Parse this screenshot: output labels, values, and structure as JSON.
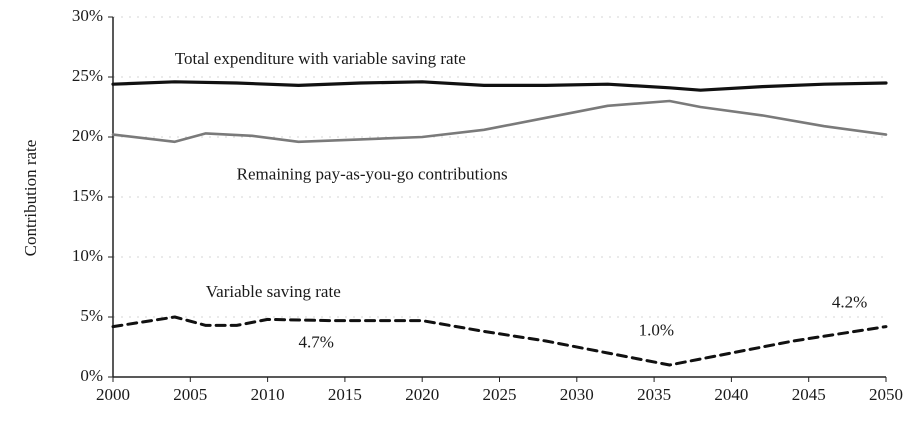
{
  "chart_data": {
    "type": "line",
    "title": "",
    "xlabel": "",
    "ylabel": "Contribution rate",
    "xlim": [
      2000,
      2050
    ],
    "ylim": [
      0,
      30
    ],
    "xticks": [
      "2000",
      "2005",
      "2010",
      "2015",
      "2020",
      "2025",
      "2030",
      "2035",
      "2040",
      "2045",
      "2050"
    ],
    "yticks": [
      "0%",
      "5%",
      "10%",
      "15%",
      "20%",
      "25%",
      "30%"
    ],
    "grid": true,
    "legend": "none",
    "series": [
      {
        "name": "Total expenditure with variable saving rate",
        "color": "#111111",
        "style": "solid-thick",
        "x": [
          2000,
          2004,
          2008,
          2012,
          2016,
          2020,
          2024,
          2028,
          2032,
          2036,
          2038,
          2042,
          2046,
          2050
        ],
        "y": [
          24.4,
          24.6,
          24.5,
          24.3,
          24.5,
          24.6,
          24.3,
          24.3,
          24.4,
          24.1,
          23.9,
          24.2,
          24.4,
          24.5
        ]
      },
      {
        "name": "Remaining pay-as-you-go contributions",
        "color": "#7a7a7a",
        "style": "solid",
        "x": [
          2000,
          2004,
          2006,
          2009,
          2012,
          2016,
          2020,
          2024,
          2028,
          2032,
          2036,
          2038,
          2042,
          2046,
          2050
        ],
        "y": [
          20.2,
          19.6,
          20.3,
          20.1,
          19.6,
          19.8,
          20.0,
          20.6,
          21.6,
          22.6,
          23.0,
          22.5,
          21.8,
          20.9,
          20.2
        ]
      },
      {
        "name": "Variable saving rate",
        "color": "#111111",
        "style": "dashed",
        "x": [
          2000,
          2004,
          2006,
          2008,
          2010,
          2014,
          2018,
          2020,
          2024,
          2028,
          2032,
          2036,
          2040,
          2044,
          2050
        ],
        "y": [
          4.2,
          5.0,
          4.3,
          4.3,
          4.8,
          4.7,
          4.7,
          4.7,
          3.8,
          3.0,
          2.0,
          1.0,
          2.0,
          3.0,
          4.2
        ]
      }
    ],
    "annotations": [
      {
        "text": "Total expenditure with variable saving rate",
        "x": 2004,
        "y": 26.4
      },
      {
        "text": "Remaining pay-as-you-go contributions",
        "x": 2008,
        "y": 16.8
      },
      {
        "text": "Variable saving rate",
        "x": 2006,
        "y": 7.0
      },
      {
        "text": "4.7%",
        "x": 2012,
        "y": 2.8
      },
      {
        "text": "1.0%",
        "x": 2034,
        "y": 3.8
      },
      {
        "text": "4.2%",
        "x": 2046.5,
        "y": 6.1
      }
    ]
  }
}
